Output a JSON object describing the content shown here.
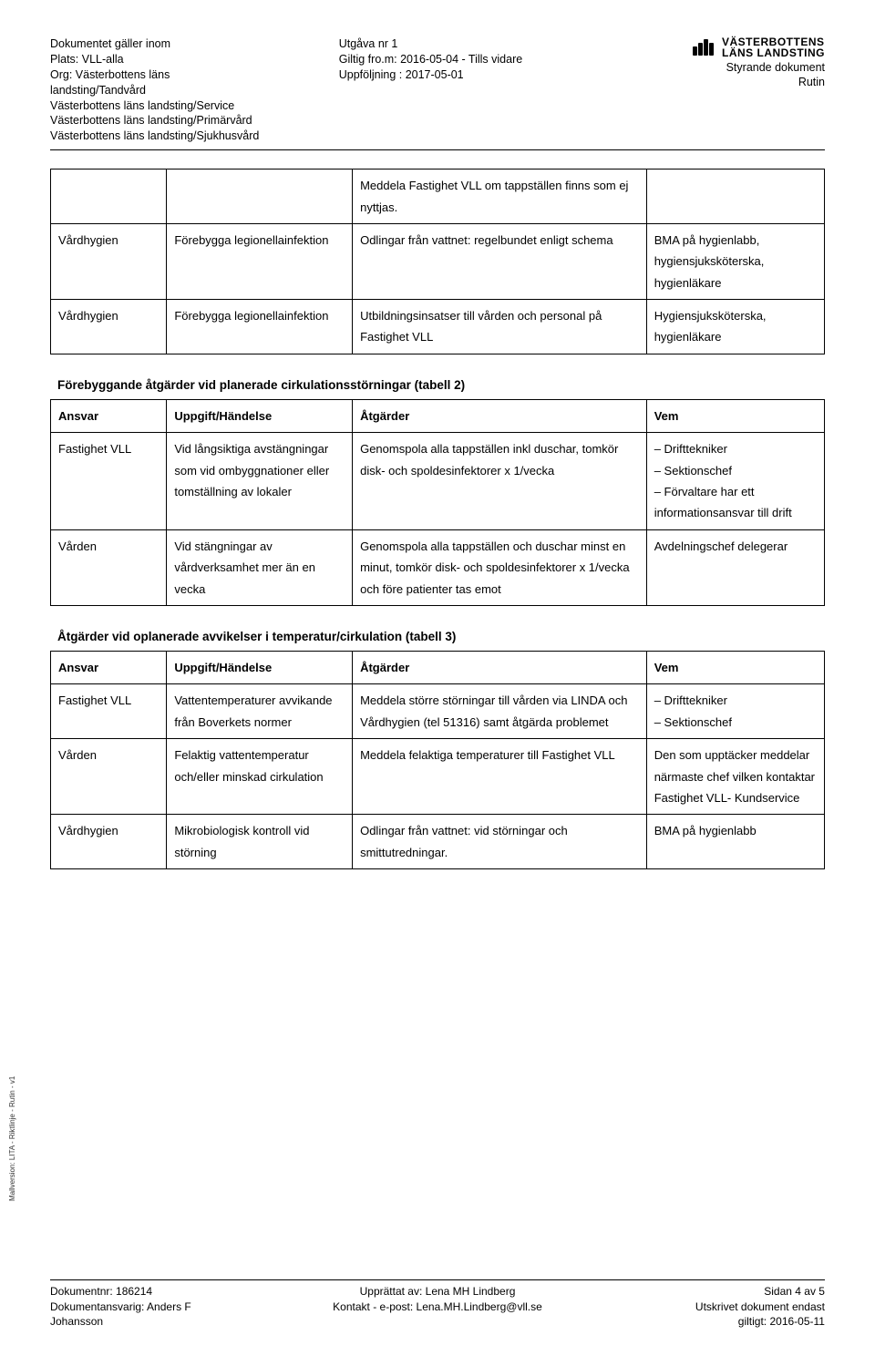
{
  "header": {
    "left": {
      "l1": "Dokumentet gäller inom",
      "l2": "Plats: VLL-alla",
      "l3": "Org: Västerbottens läns",
      "l4": "landsting/Tandvård",
      "l5": "Västerbottens läns landsting/Service",
      "l6": "Västerbottens läns landsting/Primärvård",
      "l7": "Västerbottens läns landsting/Sjukhusvård"
    },
    "mid": {
      "l1": "Utgåva nr  1",
      "l2": "Giltig fro.m: 2016-05-04  -   Tills vidare",
      "l3": "Uppföljning : 2017-05-01"
    },
    "right": {
      "brand1": "VÄSTERBOTTENS",
      "brand2": "LÄNS LANDSTING",
      "l1": "Styrande dokument",
      "l2": "Rutin"
    }
  },
  "table1": {
    "rows": [
      {
        "c1": "",
        "c2": "",
        "c3": "Meddela Fastighet VLL om tappställen finns som ej nyttjas.",
        "c4": ""
      },
      {
        "c1": "Vårdhygien",
        "c2": "Förebygga legionellainfektion",
        "c3": "Odlingar från vattnet: regelbundet enligt schema",
        "c4": "BMA på hygienlabb, hygiensjuksköterska, hygienläkare"
      },
      {
        "c1": "Vårdhygien",
        "c2": "Förebygga legionellainfektion",
        "c3": "Utbildningsinsatser till vården och personal på Fastighet VLL",
        "c4": "Hygiensjuksköterska, hygienläkare"
      }
    ]
  },
  "table2": {
    "title": "Förebyggande åtgärder vid planerade cirkulationsstörningar (tabell 2)",
    "headers": {
      "h1": "Ansvar",
      "h2": "Uppgift/Händelse",
      "h3": "Åtgärder",
      "h4": "Vem"
    },
    "rows": [
      {
        "c1": "Fastighet VLL",
        "c2": "Vid långsiktiga avstängningar som vid ombyggnationer eller tomställning av lokaler",
        "c3": "Genomspola alla tappställen inkl duschar, tomkör disk- och spoldesinfektorer x 1/vecka",
        "c4": "– Drifttekniker\n– Sektionschef\n– Förvaltare har ett informationsansvar till drift"
      },
      {
        "c1": "Vården",
        "c2": "Vid stängningar av vårdverksamhet mer än en vecka",
        "c3": "Genomspola alla tappställen och duschar minst en minut, tomkör disk- och spoldesinfektorer x 1/vecka och före patienter tas emot",
        "c4": "Avdelningschef delegerar"
      }
    ]
  },
  "table3": {
    "title": "Åtgärder vid oplanerade avvikelser i temperatur/cirkulation (tabell 3)",
    "headers": {
      "h1": "Ansvar",
      "h2": "Uppgift/Händelse",
      "h3": "Åtgärder",
      "h4": "Vem"
    },
    "rows": [
      {
        "c1": "Fastighet VLL",
        "c2": "Vattentemperaturer avvikande från Boverkets normer",
        "c3": "Meddela större störningar till vården via LINDA och Vårdhygien (tel 51316) samt åtgärda problemet",
        "c4": "– Drifttekniker\n– Sektionschef"
      },
      {
        "c1": "Vården",
        "c2": "Felaktig vattentemperatur och/eller minskad cirkulation",
        "c3": "Meddela felaktiga temperaturer till Fastighet VLL",
        "c4": "Den som upptäcker meddelar närmaste chef vilken kontaktar Fastighet VLL- Kundservice"
      },
      {
        "c1": "Vårdhygien",
        "c2": "Mikrobiologisk kontroll vid störning",
        "c3": "Odlingar från vattnet: vid störningar och smittutredningar.",
        "c4": "BMA på hygienlabb"
      }
    ]
  },
  "vertical": "Mallversion: LITA - Riktlinje - Rutin - v1",
  "footer": {
    "left": {
      "l1": "Dokumentnr: 186214",
      "l2": "Dokumentansvarig: Anders F",
      "l3": "Johansson"
    },
    "mid": {
      "l1": "Upprättat av: Lena MH Lindberg",
      "l2": "Kontakt - e-post: Lena.MH.Lindberg@vll.se"
    },
    "right": {
      "l1": "Sidan 4 av 5",
      "l2": "Utskrivet dokument endast",
      "l3": "giltigt: 2016-05-11"
    }
  }
}
